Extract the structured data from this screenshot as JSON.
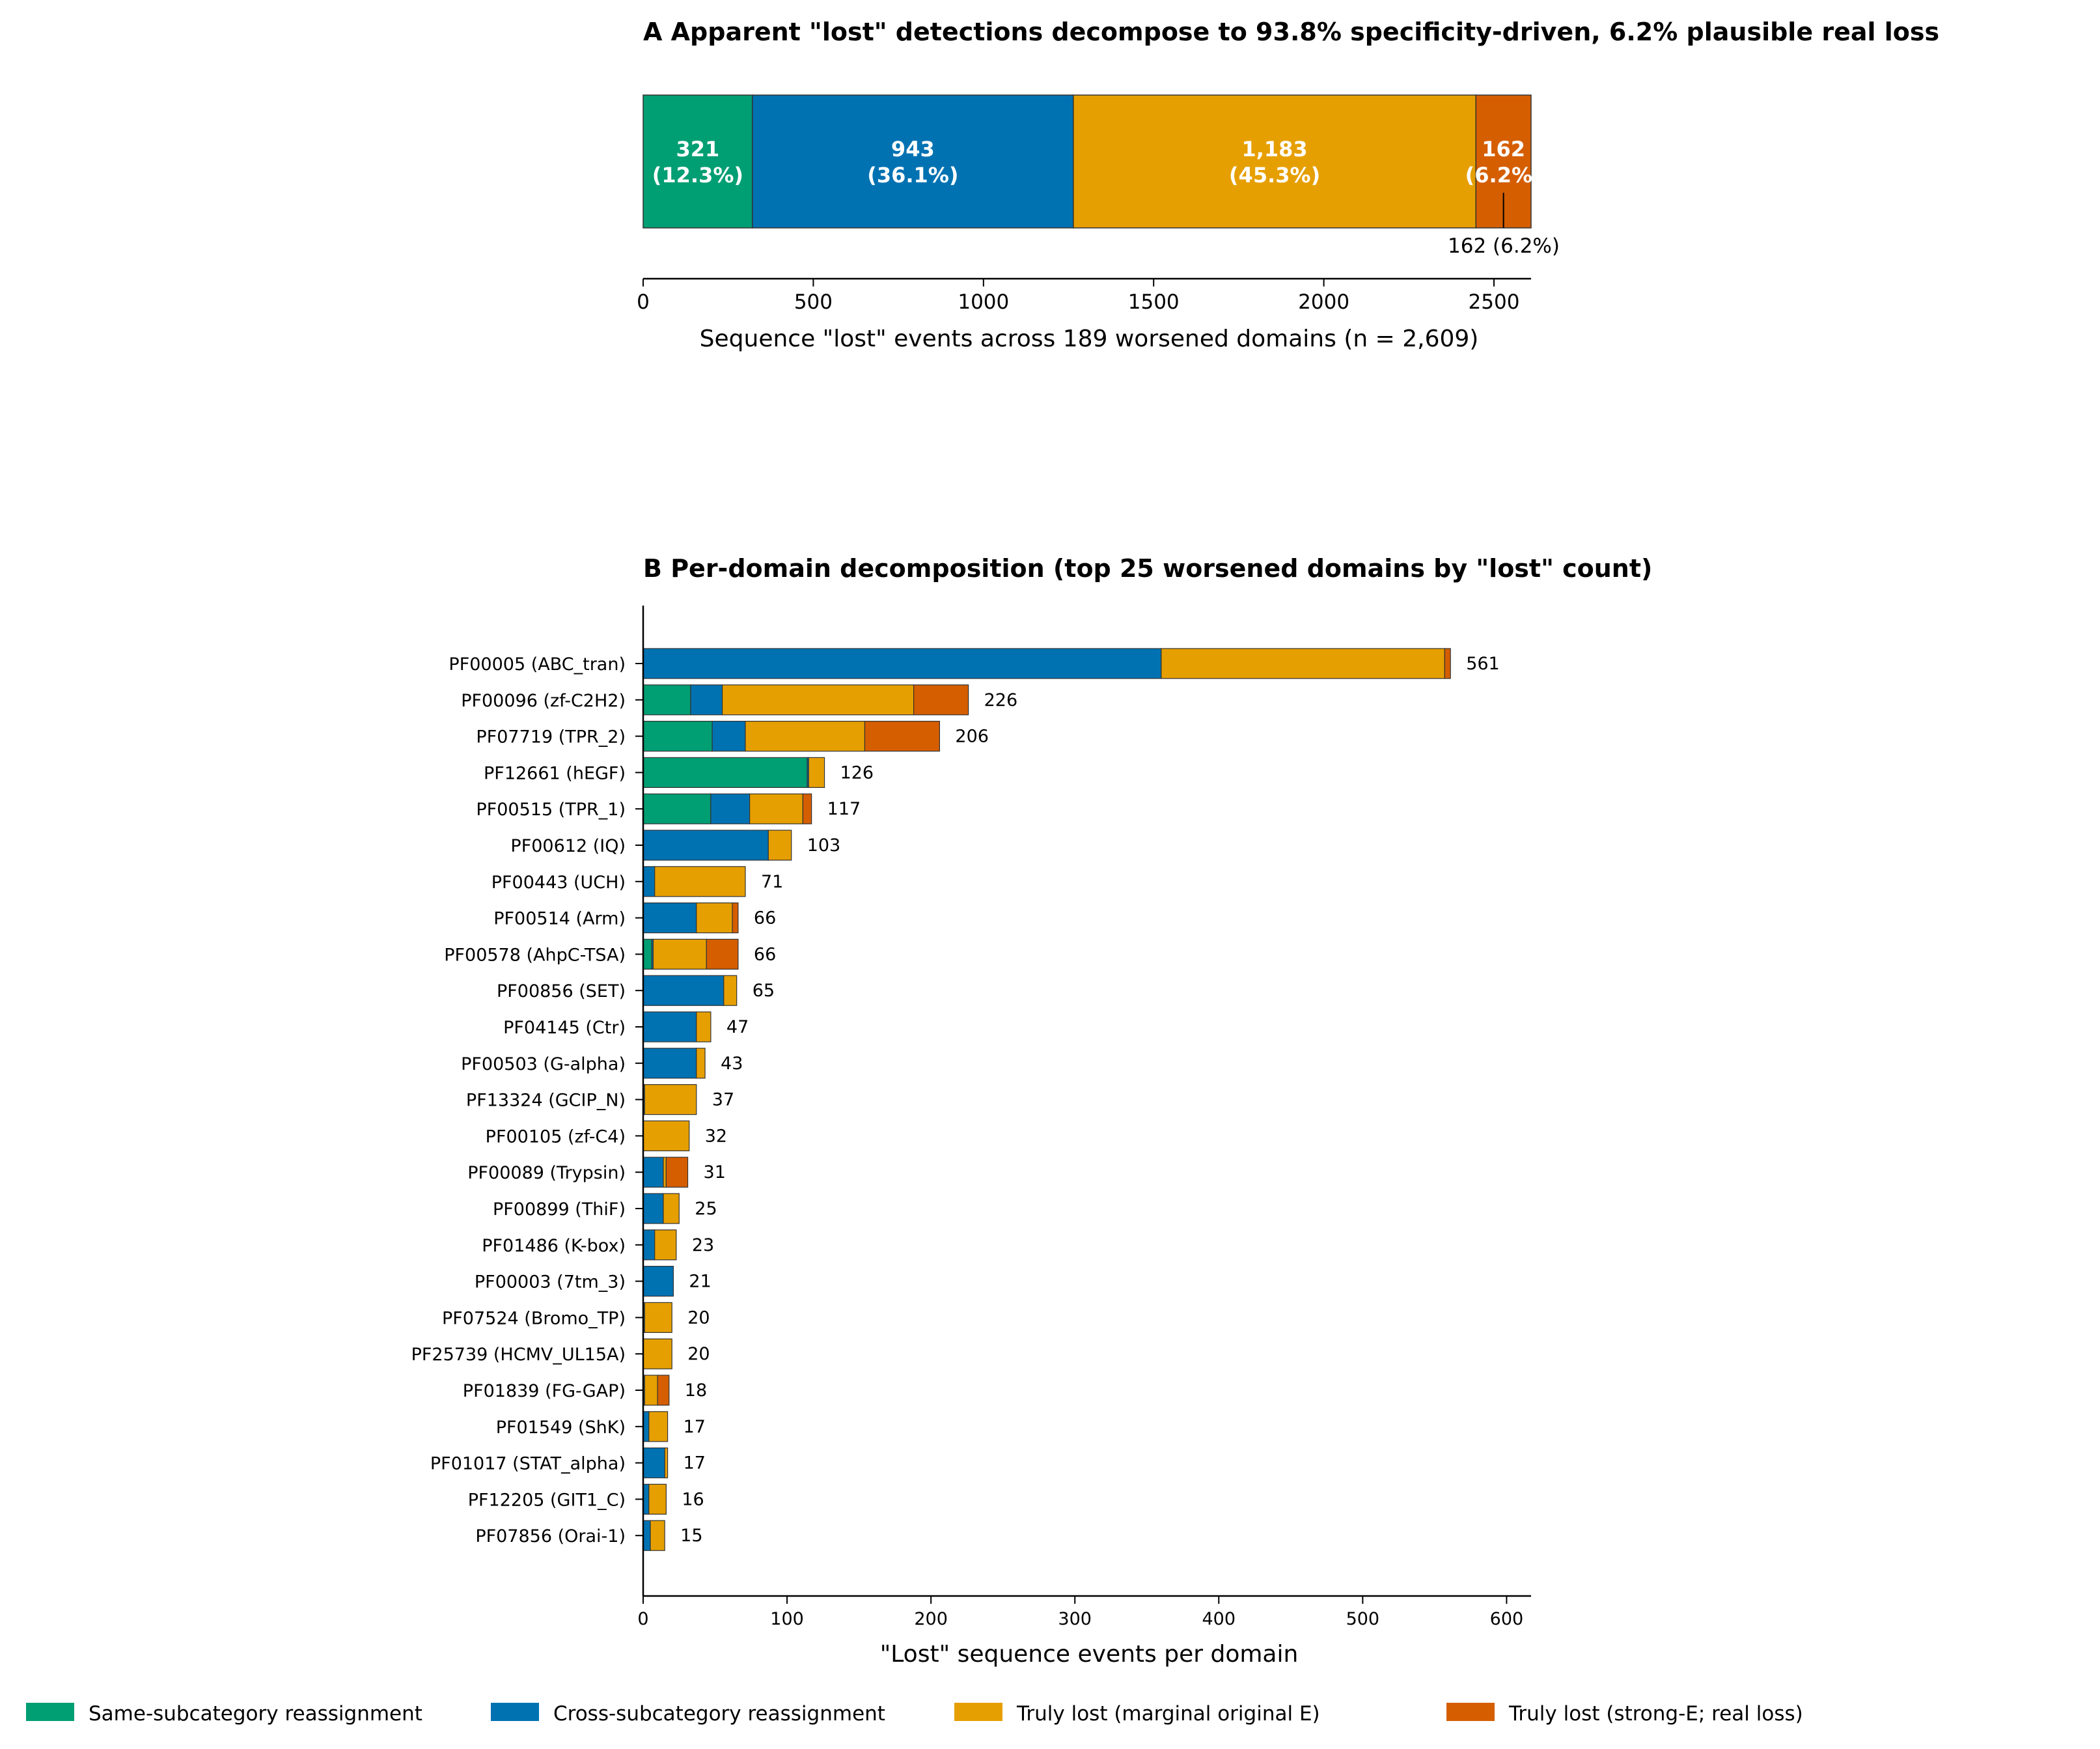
{
  "colors": {
    "same": "#009E73",
    "cross": "#0072B2",
    "marginal": "#E69F00",
    "strong": "#D55E00"
  },
  "chart_data": [
    {
      "type": "bar",
      "orientation": "horizontal-stacked",
      "title": "A   Apparent \"lost\" detections decompose to 93.8% specificity-driven, 6.2% plausible real loss",
      "xlabel": "Sequence \"lost\" events across 189 worsened domains (n = 2,609)",
      "xlim": [
        0,
        2609
      ],
      "xticks": [
        0,
        500,
        1000,
        1500,
        2000,
        2500
      ],
      "segments": [
        {
          "name": "Same-subcategory reassignment",
          "value": 321,
          "label": "321",
          "pct_label": "(12.3%)"
        },
        {
          "name": "Cross-subcategory reassignment",
          "value": 943,
          "label": "943",
          "pct_label": "(36.1%)"
        },
        {
          "name": "Truly lost (marginal original E)",
          "value": 1183,
          "label": "1,183",
          "pct_label": "(45.3%)"
        },
        {
          "name": "Truly lost (strong-E; real loss)",
          "value": 162,
          "label": "162",
          "pct_label": "(6.2%)"
        }
      ],
      "annotation": "162 (6.2%)"
    },
    {
      "type": "bar",
      "orientation": "horizontal-stacked",
      "title": "B   Per-domain decomposition (top 25 worsened domains by \"lost\" count)",
      "xlabel": "\"Lost\" sequence events per domain",
      "xlim": [
        0,
        617
      ],
      "xticks": [
        0,
        100,
        200,
        300,
        400,
        500,
        600
      ],
      "series": [
        {
          "name": "Same-subcategory reassignment"
        },
        {
          "name": "Cross-subcategory reassignment"
        },
        {
          "name": "Truly lost (marginal original E)"
        },
        {
          "name": "Truly lost (strong-E; real loss)"
        }
      ],
      "rows": [
        {
          "label": "PF00005  (ABC_tran)",
          "values": [
            0,
            360,
            197,
            4
          ],
          "total": "561"
        },
        {
          "label": "PF00096  (zf-C2H2)",
          "values": [
            33,
            22,
            133,
            38
          ],
          "total": "226"
        },
        {
          "label": "PF07719  (TPR_2)",
          "values": [
            48,
            23,
            83,
            52
          ],
          "total": "206"
        },
        {
          "label": "PF12661  (hEGF)",
          "values": [
            114,
            1,
            11,
            0
          ],
          "total": "126"
        },
        {
          "label": "PF00515  (TPR_1)",
          "values": [
            47,
            27,
            37,
            6
          ],
          "total": "117"
        },
        {
          "label": "PF00612  (IQ)",
          "values": [
            0,
            87,
            16,
            0
          ],
          "total": "103"
        },
        {
          "label": "PF00443  (UCH)",
          "values": [
            0,
            8,
            63,
            0
          ],
          "total": "71"
        },
        {
          "label": "PF00514  (Arm)",
          "values": [
            0,
            37,
            25,
            4
          ],
          "total": "66"
        },
        {
          "label": "PF00578  (AhpC-TSA)",
          "values": [
            6,
            1,
            37,
            22
          ],
          "total": "66"
        },
        {
          "label": "PF00856  (SET)",
          "values": [
            0,
            56,
            9,
            0
          ],
          "total": "65"
        },
        {
          "label": "PF04145  (Ctr)",
          "values": [
            0,
            37,
            10,
            0
          ],
          "total": "47"
        },
        {
          "label": "PF00503  (G-alpha)",
          "values": [
            0,
            37,
            6,
            0
          ],
          "total": "43"
        },
        {
          "label": "PF13324  (GCIP_N)",
          "values": [
            0,
            1,
            36,
            0
          ],
          "total": "37"
        },
        {
          "label": "PF00105  (zf-C4)",
          "values": [
            0,
            0,
            32,
            0
          ],
          "total": "32"
        },
        {
          "label": "PF00089  (Trypsin)",
          "values": [
            0,
            14,
            2,
            15
          ],
          "total": "31"
        },
        {
          "label": "PF00899  (ThiF)",
          "values": [
            0,
            14,
            11,
            0
          ],
          "total": "25"
        },
        {
          "label": "PF01486  (K-box)",
          "values": [
            0,
            8,
            15,
            0
          ],
          "total": "23"
        },
        {
          "label": "PF00003  (7tm_3)",
          "values": [
            0,
            21,
            0,
            0
          ],
          "total": "21"
        },
        {
          "label": "PF07524  (Bromo_TP)",
          "values": [
            0,
            1,
            19,
            0
          ],
          "total": "20"
        },
        {
          "label": "PF25739  (HCMV_UL15A)",
          "values": [
            0,
            0,
            20,
            0
          ],
          "total": "20"
        },
        {
          "label": "PF01839  (FG-GAP)",
          "values": [
            0,
            1,
            9,
            8
          ],
          "total": "18"
        },
        {
          "label": "PF01549  (ShK)",
          "values": [
            0,
            4,
            13,
            0
          ],
          "total": "17"
        },
        {
          "label": "PF01017  (STAT_alpha)",
          "values": [
            0,
            15,
            2,
            0
          ],
          "total": "17"
        },
        {
          "label": "PF12205  (GIT1_C)",
          "values": [
            0,
            4,
            12,
            0
          ],
          "total": "16"
        },
        {
          "label": "PF07856  (Orai-1)",
          "values": [
            0,
            5,
            10,
            0
          ],
          "total": "15"
        }
      ]
    }
  ],
  "legend": [
    {
      "label": "Same-subcategory reassignment",
      "color_key": "same"
    },
    {
      "label": "Cross-subcategory reassignment",
      "color_key": "cross"
    },
    {
      "label": "Truly lost (marginal original E)",
      "color_key": "marginal"
    },
    {
      "label": "Truly lost (strong-E; real loss)",
      "color_key": "strong"
    }
  ]
}
